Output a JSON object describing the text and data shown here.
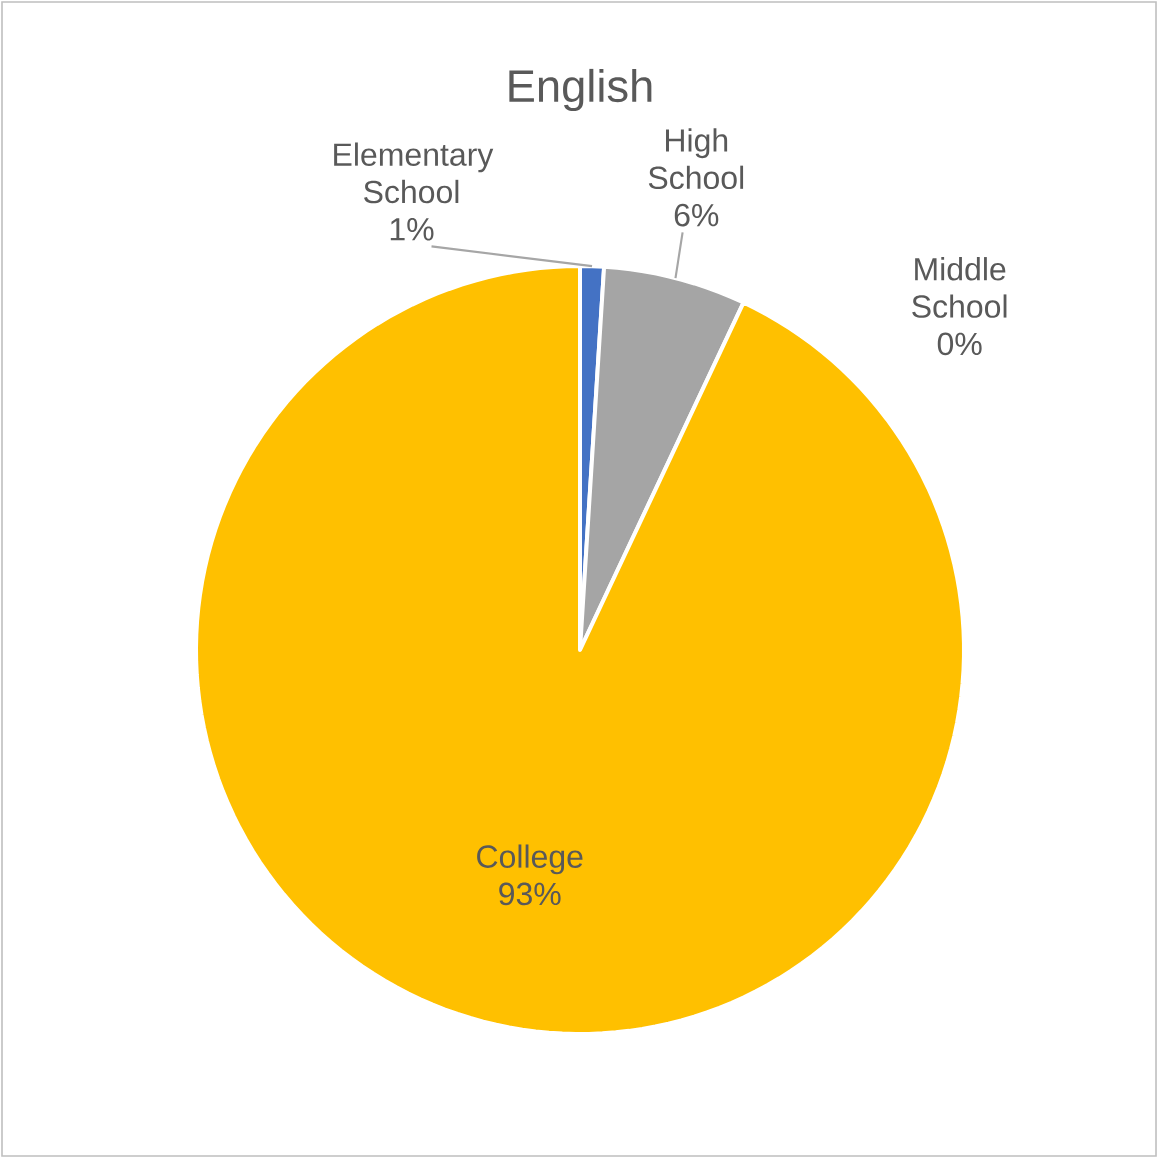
{
  "chart_data": {
    "type": "pie",
    "title": "English",
    "categories": [
      "Elementary School",
      "High School",
      "Middle School",
      "College"
    ],
    "values": [
      1,
      6,
      0,
      93
    ],
    "value_labels": [
      "1%",
      "6%",
      "0%",
      "93%"
    ],
    "colors": [
      "#4472c4",
      "#a5a5a5",
      "#ed7d31",
      "#ffc000"
    ],
    "data_labels": true,
    "legend": false
  }
}
